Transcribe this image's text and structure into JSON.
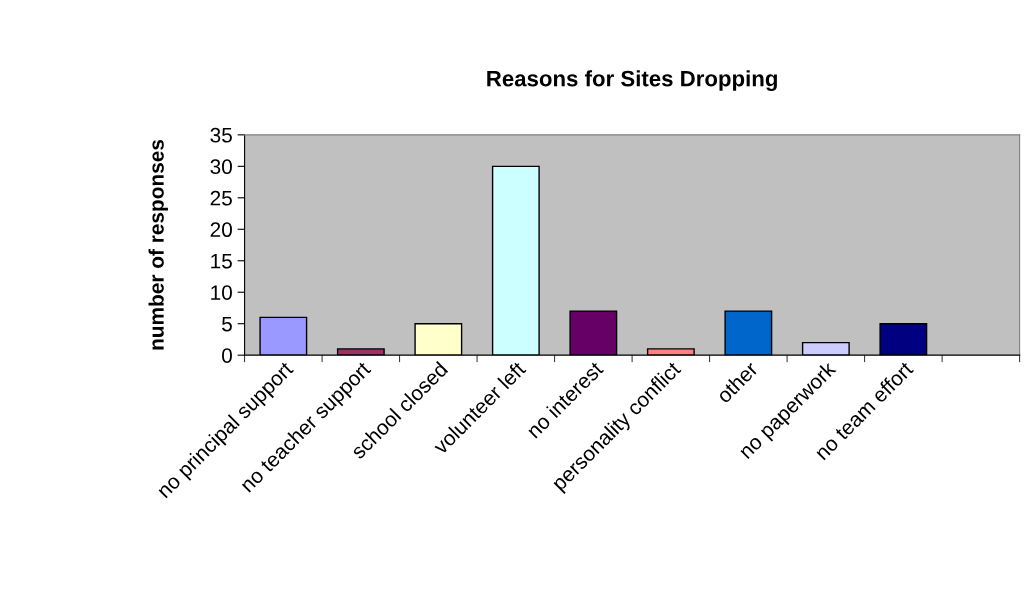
{
  "chart_data": {
    "type": "bar",
    "title": "Reasons for Sites Dropping",
    "ylabel": "number of responses",
    "categories": [
      "no principal support",
      "no teacher support",
      "school closed",
      "volunteer left",
      "no interest",
      "personality conflict",
      "other",
      "no paperwork",
      "no team effort",
      null
    ],
    "values": [
      6,
      1,
      5,
      30,
      7,
      1,
      7,
      2,
      5,
      null
    ],
    "colors": [
      "#9999ff",
      "#993366",
      "#ffffcc",
      "#ccffff",
      "#660066",
      "#ff8080",
      "#0066cc",
      "#ccccff",
      "#000080",
      "#000000"
    ],
    "ylim": [
      0,
      35
    ],
    "yticks": [
      0,
      5,
      10,
      15,
      20,
      25,
      30,
      35
    ],
    "grid": false,
    "legend": false
  }
}
